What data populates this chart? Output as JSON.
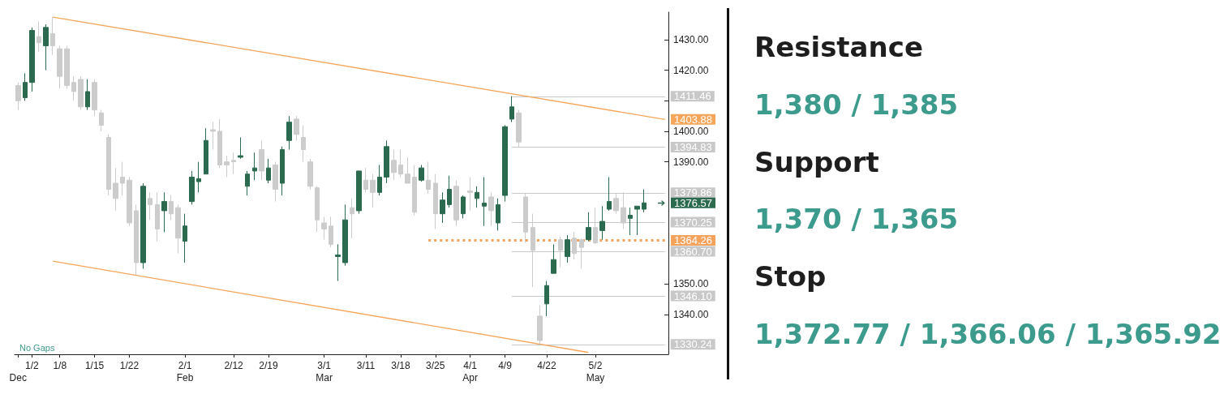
{
  "chart_data": [
    {
      "type": "candlestick",
      "categories": [
        "\nDec",
        null,
        "1/2",
        null,
        null,
        null,
        "1/8",
        null,
        null,
        null,
        null,
        "1/15",
        null,
        null,
        null,
        null,
        "1/22",
        null,
        null,
        null,
        null,
        null,
        null,
        null,
        "2/1\nFeb",
        null,
        null,
        null,
        null,
        null,
        null,
        "2/12",
        null,
        null,
        null,
        null,
        "2/19",
        null,
        null,
        null,
        null,
        null,
        null,
        null,
        "3/1\nMar",
        null,
        null,
        null,
        null,
        null,
        "3/11",
        null,
        null,
        null,
        null,
        "3/18",
        null,
        null,
        null,
        null,
        "3/25",
        null,
        null,
        null,
        null,
        "4/1\nApr",
        null,
        null,
        null,
        null,
        "4/9",
        null,
        null,
        null,
        null,
        null,
        "4/22",
        null,
        null,
        null,
        null,
        null,
        null,
        "5/2\nMay",
        null,
        null,
        null,
        null,
        null,
        null,
        null,
        null,
        null,
        null
      ],
      "ohlc": [
        [
          1415,
          1416,
          1407,
          1410
        ],
        [
          1411,
          1419,
          1410,
          1416
        ],
        [
          1416,
          1434,
          1413,
          1433
        ],
        [
          1431,
          1436,
          1426,
          1429
        ],
        [
          1428,
          1435,
          1420,
          1434
        ],
        [
          1432,
          1437.4,
          1425,
          1428
        ],
        [
          1427,
          1428,
          1414,
          1418
        ],
        [
          1427,
          1428,
          1414,
          1415
        ],
        [
          1416,
          1418,
          1410,
          1413
        ],
        [
          1417,
          1418,
          1407,
          1408
        ],
        [
          1408,
          1417,
          1407,
          1413
        ],
        [
          1416,
          1417,
          1405,
          1407
        ],
        [
          1406,
          1407,
          1400,
          1402
        ],
        [
          1398,
          1399,
          1379,
          1381
        ],
        [
          1383,
          1388,
          1374,
          1378
        ],
        [
          1385,
          1390,
          1379,
          1383
        ],
        [
          1384,
          1385,
          1369,
          1370
        ],
        [
          1374,
          1376,
          1353,
          1357
        ],
        [
          1357,
          1383,
          1355,
          1382
        ],
        [
          1378,
          1380,
          1371,
          1376
        ],
        [
          1376,
          1380,
          1364,
          1368
        ],
        [
          1374,
          1380,
          1367,
          1377
        ],
        [
          1377,
          1379,
          1371,
          1373
        ],
        [
          1375,
          1376,
          1360,
          1365
        ],
        [
          1364,
          1373,
          1357,
          1369
        ],
        [
          1377,
          1387,
          1376,
          1385
        ],
        [
          1383.5,
          1390,
          1380,
          1384.5
        ],
        [
          1386,
          1401,
          1386,
          1397
        ],
        [
          1400.5,
          1403,
          1394,
          1400
        ],
        [
          1400,
          1404,
          1388,
          1389
        ],
        [
          1390,
          1392,
          1385,
          1389
        ],
        [
          1390.5,
          1393,
          1386,
          1390
        ],
        [
          1391.5,
          1398,
          1391,
          1392
        ],
        [
          1382,
          1387,
          1379,
          1386
        ],
        [
          1387,
          1393,
          1384,
          1388
        ],
        [
          1394,
          1397,
          1384,
          1387
        ],
        [
          1384,
          1391,
          1383,
          1388
        ],
        [
          1389,
          1390,
          1377,
          1381
        ],
        [
          1383,
          1395,
          1379,
          1394
        ],
        [
          1397,
          1405,
          1394,
          1403
        ],
        [
          1404,
          1405,
          1397,
          1399
        ],
        [
          1398,
          1402,
          1390,
          1394
        ],
        [
          1390,
          1391,
          1381,
          1382
        ],
        [
          1381.5,
          1382,
          1367,
          1371
        ],
        [
          1370,
          1372,
          1364.5,
          1368
        ],
        [
          1369,
          1372,
          1362,
          1363
        ],
        [
          1359,
          1363,
          1351,
          1359.5
        ],
        [
          1357,
          1376,
          1356,
          1371
        ],
        [
          1375,
          1378,
          1365,
          1373
        ],
        [
          1374,
          1387,
          1373,
          1387
        ],
        [
          1384,
          1388,
          1380,
          1381
        ],
        [
          1384,
          1386,
          1375,
          1380
        ],
        [
          1380,
          1389,
          1379,
          1385
        ],
        [
          1385,
          1397,
          1383,
          1395
        ],
        [
          1390.5,
          1394,
          1384,
          1386.5
        ],
        [
          1389,
          1394,
          1385,
          1386
        ],
        [
          1386,
          1391.5,
          1383,
          1383
        ],
        [
          1385,
          1389,
          1372.5,
          1373.5
        ],
        [
          1384,
          1389,
          1383.5,
          1388
        ],
        [
          1384,
          1390,
          1379.5,
          1381
        ],
        [
          1383,
          1386,
          1368,
          1373
        ],
        [
          1373,
          1380,
          1370,
          1377.5
        ],
        [
          1376,
          1385.5,
          1375,
          1381
        ],
        [
          1382,
          1384,
          1369,
          1371
        ],
        [
          1373,
          1379,
          1371.5,
          1378.5
        ],
        [
          1380.5,
          1385,
          1374,
          1380
        ],
        [
          1378,
          1382,
          1375,
          1380
        ],
        [
          1375.5,
          1385,
          1369,
          1376.5
        ],
        [
          1378.5,
          1380,
          1369,
          1374
        ],
        [
          1370,
          1378,
          1367.5,
          1376
        ],
        [
          1379,
          1402,
          1377,
          1401.5
        ],
        [
          1404,
          1411.46,
          1403,
          1408
        ],
        [
          1406,
          1407,
          1394.83,
          1396.5
        ],
        [
          1378.5,
          1379.86,
          1363.5,
          1367
        ],
        [
          1368.5,
          1373,
          1349,
          1361
        ],
        [
          1339.5,
          1343,
          1330.24,
          1331.5
        ],
        [
          1343.5,
          1351,
          1339.5,
          1349.5
        ],
        [
          1353.5,
          1363,
          1353.5,
          1358
        ],
        [
          1364.5,
          1365.5,
          1355.5,
          1361
        ],
        [
          1359,
          1366,
          1357,
          1364.5
        ],
        [
          1365,
          1367,
          1358,
          1360
        ],
        [
          1364.5,
          1365,
          1355,
          1362
        ],
        [
          1364.5,
          1373.5,
          1364,
          1368.5
        ],
        [
          1368.5,
          1375,
          1363,
          1363.5
        ],
        [
          1367.5,
          1375.5,
          1364.5,
          1370.5
        ],
        [
          1374.5,
          1385,
          1374,
          1377
        ],
        [
          1378,
          1379.5,
          1373,
          1374
        ],
        [
          1375,
          1380,
          1368,
          1370
        ],
        [
          1371.5,
          1375,
          1366,
          1372.5
        ],
        [
          1374.5,
          1375.5,
          1366,
          1375.5
        ],
        [
          1374.5,
          1381,
          1373.5,
          1376.57
        ],
        null,
        null,
        null
      ],
      "value_labels": [
        null,
        null,
        null,
        null,
        null,
        null,
        null,
        null,
        null,
        null,
        null,
        null,
        null,
        null,
        null,
        null,
        null,
        null,
        null,
        null,
        null,
        null,
        null,
        null,
        null,
        null,
        null,
        null,
        null,
        null,
        null,
        null,
        null,
        null,
        null,
        null,
        null,
        null,
        null,
        null,
        null,
        null,
        null,
        null,
        null,
        null,
        null,
        null,
        null,
        null,
        null,
        null,
        null,
        null,
        null,
        null,
        null,
        null,
        null,
        null,
        null,
        null,
        null,
        null,
        null,
        null,
        null,
        null,
        null,
        null,
        null,
        null,
        null,
        null,
        null,
        null,
        null,
        null,
        null,
        null,
        null,
        null,
        null,
        null,
        null,
        null,
        null,
        null,
        null,
        null,
        "1376.57",
        null,
        null,
        null
      ],
      "colors": [
        "#cccccc",
        "#2b6a4f",
        "#2b6a4f",
        "#cccccc",
        "#2b6a4f",
        "#cccccc",
        "#cccccc",
        "#cccccc",
        "#cccccc",
        "#cccccc",
        "#2b6a4f",
        "#cccccc",
        "#cccccc",
        "#cccccc",
        "#cccccc",
        "#cccccc",
        "#cccccc",
        "#cccccc",
        "#2b6a4f",
        "#cccccc",
        "#cccccc",
        "#2b6a4f",
        "#cccccc",
        "#cccccc",
        "#2b6a4f",
        "#2b6a4f",
        "#2b6a4f",
        "#2b6a4f",
        "#cccccc",
        "#cccccc",
        "#cccccc",
        "#cccccc",
        "#2b6a4f",
        "#2b6a4f",
        "#2b6a4f",
        "#cccccc",
        "#2b6a4f",
        "#cccccc",
        "#2b6a4f",
        "#2b6a4f",
        "#cccccc",
        "#cccccc",
        "#cccccc",
        "#cccccc",
        "#cccccc",
        "#cccccc",
        "#2b6a4f",
        "#2b6a4f",
        "#cccccc",
        "#2b6a4f",
        "#cccccc",
        "#cccccc",
        "#2b6a4f",
        "#2b6a4f",
        "#cccccc",
        "#cccccc",
        "#cccccc",
        "#cccccc",
        "#2b6a4f",
        "#cccccc",
        "#cccccc",
        "#2b6a4f",
        "#2b6a4f",
        "#cccccc",
        "#2b6a4f",
        "#cccccc",
        "#2b6a4f",
        "#2b6a4f",
        "#cccccc",
        "#2b6a4f",
        "#2b6a4f",
        "#2b6a4f",
        "#cccccc",
        "#cccccc",
        "#cccccc",
        "#cccccc",
        "#2b6a4f",
        "#2b6a4f",
        "#cccccc",
        "#2b6a4f",
        "#cccccc",
        "#cccccc",
        "#2b6a4f",
        "#cccccc",
        "#2b6a4f",
        "#2b6a4f",
        "#cccccc",
        "#cccccc",
        "#2b6a4f",
        "#2b6a4f",
        "#2b6a4f",
        null,
        null,
        null
      ],
      "series": [
        {
          "type": "line",
          "color": "#f6a65a",
          "values": [
            null,
            null,
            null,
            null,
            null,
            1437.4,
            null,
            null,
            null,
            null,
            null,
            null,
            null,
            null,
            null,
            null,
            null,
            null,
            null,
            null,
            null,
            null,
            null,
            null,
            null,
            null,
            null,
            null,
            null,
            null,
            null,
            null,
            null,
            null,
            null,
            null,
            null,
            null,
            null,
            null,
            null,
            null,
            null,
            null,
            null,
            null,
            null,
            null,
            null,
            null,
            null,
            null,
            null,
            null,
            null,
            null,
            null,
            null,
            null,
            null,
            null,
            null,
            null,
            null,
            null,
            null,
            null,
            null,
            null,
            null,
            null,
            null,
            null,
            null,
            null,
            null,
            null,
            null,
            null,
            null,
            null,
            null,
            null,
            null,
            null,
            null,
            null,
            null,
            null,
            null,
            null,
            null,
            null,
            1403.88
          ],
          "value_labels": [
            null,
            null,
            null,
            null,
            null,
            null,
            null,
            null,
            null,
            null,
            null,
            null,
            null,
            null,
            null,
            null,
            null,
            null,
            null,
            null,
            null,
            null,
            null,
            null,
            null,
            null,
            null,
            null,
            null,
            null,
            null,
            null,
            null,
            null,
            null,
            null,
            null,
            null,
            null,
            null,
            null,
            null,
            null,
            null,
            null,
            null,
            null,
            null,
            null,
            null,
            null,
            null,
            null,
            null,
            null,
            null,
            null,
            null,
            null,
            null,
            null,
            null,
            null,
            null,
            null,
            null,
            null,
            null,
            null,
            null,
            null,
            null,
            null,
            null,
            null,
            null,
            null,
            null,
            null,
            null,
            null,
            null,
            null,
            null,
            null,
            null,
            null,
            null,
            null,
            null,
            null,
            null,
            null,
            "1403.88"
          ]
        },
        {
          "type": "line",
          "color": "#f6a65a",
          "values": [
            null,
            null,
            null,
            null,
            null,
            1357.5,
            null,
            null,
            null,
            null,
            null,
            null,
            null,
            null,
            null,
            null,
            null,
            null,
            null,
            null,
            null,
            null,
            null,
            null,
            null,
            null,
            null,
            null,
            null,
            null,
            null,
            null,
            null,
            null,
            null,
            null,
            null,
            null,
            null,
            null,
            null,
            null,
            null,
            null,
            null,
            null,
            null,
            null,
            null,
            null,
            null,
            null,
            null,
            null,
            null,
            null,
            null,
            null,
            null,
            null,
            null,
            null,
            null,
            null,
            null,
            null,
            null,
            null,
            null,
            null,
            null,
            null,
            null,
            null,
            null,
            null,
            null,
            null,
            null,
            null,
            null,
            null,
            1327.6,
            null,
            null,
            null,
            null,
            null,
            null,
            null,
            null,
            null,
            null,
            null
          ]
        },
        {
          "type": "line",
          "color": "#f5a25d",
          "line_style": "dotted",
          "values": [
            null,
            null,
            null,
            null,
            null,
            null,
            null,
            null,
            null,
            null,
            null,
            null,
            null,
            null,
            null,
            null,
            null,
            null,
            null,
            null,
            null,
            null,
            null,
            null,
            null,
            null,
            null,
            null,
            null,
            null,
            null,
            null,
            null,
            null,
            null,
            null,
            null,
            null,
            null,
            null,
            null,
            null,
            null,
            null,
            null,
            null,
            null,
            null,
            null,
            null,
            null,
            null,
            null,
            null,
            null,
            null,
            null,
            null,
            null,
            1364.26,
            null,
            null,
            null,
            null,
            null,
            null,
            null,
            null,
            null,
            null,
            null,
            null,
            null,
            null,
            null,
            null,
            null,
            null,
            null,
            null,
            null,
            null,
            null,
            null,
            null,
            null,
            null,
            null,
            null,
            null,
            null,
            null,
            null,
            1364.26
          ],
          "value_labels": [
            null,
            null,
            null,
            null,
            null,
            null,
            null,
            null,
            null,
            null,
            null,
            null,
            null,
            null,
            null,
            null,
            null,
            null,
            null,
            null,
            null,
            null,
            null,
            null,
            null,
            null,
            null,
            null,
            null,
            null,
            null,
            null,
            null,
            null,
            null,
            null,
            null,
            null,
            null,
            null,
            null,
            null,
            null,
            null,
            null,
            null,
            null,
            null,
            null,
            null,
            null,
            null,
            null,
            null,
            null,
            null,
            null,
            null,
            null,
            null,
            null,
            null,
            null,
            null,
            null,
            null,
            null,
            null,
            null,
            null,
            null,
            null,
            null,
            null,
            null,
            null,
            null,
            null,
            null,
            null,
            null,
            null,
            null,
            null,
            null,
            null,
            null,
            null,
            null,
            null,
            null,
            null,
            null,
            "1364.26"
          ]
        }
      ],
      "ylim": [
        1327,
        1439
      ],
      "yticks": [
        {
          "value": 1340,
          "label": "1340.00"
        },
        {
          "value": 1350,
          "label": "1350.00"
        },
        {
          "value": 1390,
          "label": "1390.00"
        },
        {
          "value": 1400,
          "label": "1400.00"
        },
        {
          "value": 1410,
          "label": null
        },
        {
          "value": 1420,
          "label": "1420.00"
        },
        {
          "value": 1430,
          "label": "1430.00"
        }
      ],
      "ref_lines": [
        {
          "axis": "y",
          "value": 1411.46,
          "label": "1411.46",
          "color": "#c8c8c8"
        },
        {
          "axis": "y",
          "value": 1394.83,
          "label": "1394.83",
          "color": "#c8c8c8"
        },
        {
          "axis": "y",
          "value": 1379.86,
          "label": "1379.86",
          "color": "#c8c8c8"
        },
        {
          "axis": "y",
          "value": 1370.25,
          "label": "1370.25",
          "color": "#c8c8c8"
        },
        {
          "axis": "y",
          "value": 1360.7,
          "label": "1360.70",
          "color": "#c8c8c8"
        },
        {
          "axis": "y",
          "value": 1346.1,
          "label": "1346.10",
          "color": "#c8c8c8"
        },
        {
          "axis": "y",
          "value": 1330.24,
          "label": "1330.24",
          "color": "#c8c8c8"
        }
      ],
      "annotations": [
        "No Gaps"
      ]
    },
    {
      "type": "other",
      "annotations": [
        "Resistance",
        "1,380 / 1,385",
        "Support",
        "1,370 / 1,365",
        "Stop",
        "1,372.77 / 1,366.06 / 1,365.92"
      ]
    }
  ]
}
